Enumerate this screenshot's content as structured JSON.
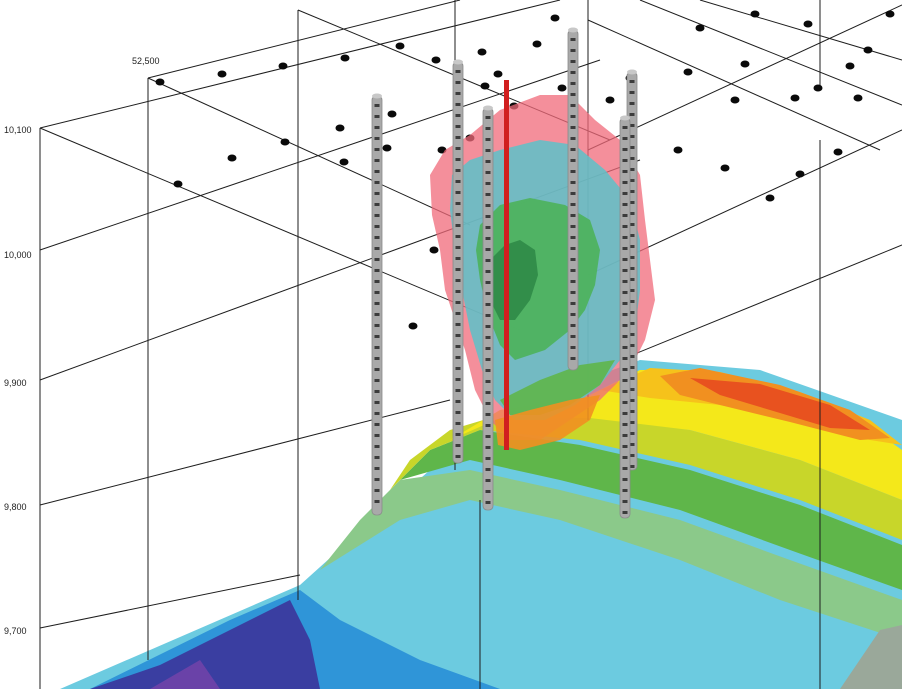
{
  "view": {
    "grid_labels": [
      "52,500"
    ],
    "elevation_labels": [
      "10,100",
      "10,000",
      "9,900",
      "9,800",
      "9,700"
    ]
  },
  "colors": {
    "background": "#ffffff",
    "grid_line": "#1e1e1e",
    "sample_point": "#0a0a0a",
    "drill_hole": "#a9a9a9",
    "drill_hole_highlight": "#d11f1f",
    "shell_outer": "#f06a7a",
    "shell_middle": "#5cc2c9",
    "shell_inner": "#4cb25a",
    "shell_core": "#2f8a47",
    "surface_scale": [
      "#3a3ea1",
      "#2f95d8",
      "#6ccbe0",
      "#8bc98a",
      "#5fb64a",
      "#c8d62a",
      "#f4e81a",
      "#f6c21b",
      "#f19020",
      "#e8521f"
    ]
  },
  "legend_icons": [
    "drill-hole-icon",
    "sample-point-icon"
  ]
}
